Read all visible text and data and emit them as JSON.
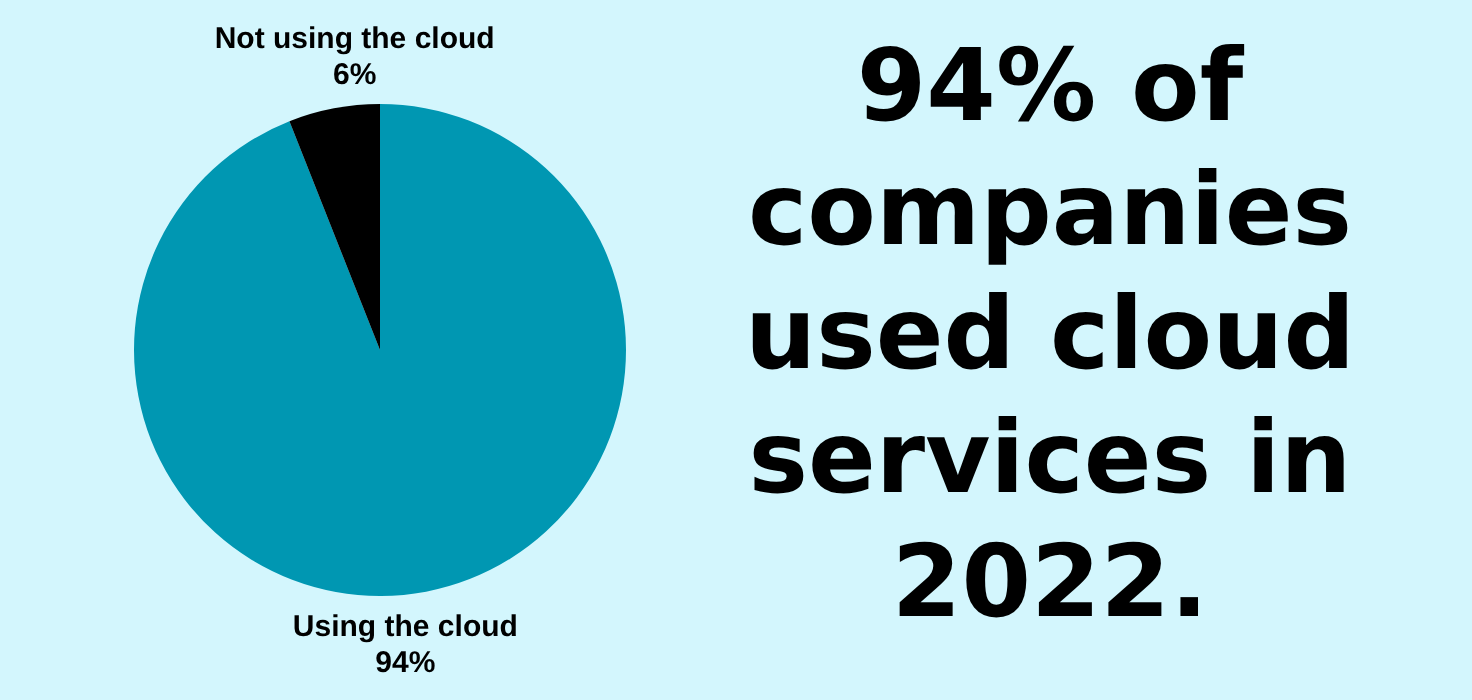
{
  "chart_data": {
    "type": "pie",
    "title": "94% of companies used cloud services in 2022.",
    "categories": [
      "Using the cloud",
      "Not using the cloud"
    ],
    "values": [
      94,
      6
    ],
    "colors": [
      "#0097b2",
      "#000000"
    ],
    "value_labels": [
      "94%",
      "6%"
    ],
    "legend": false
  }
}
